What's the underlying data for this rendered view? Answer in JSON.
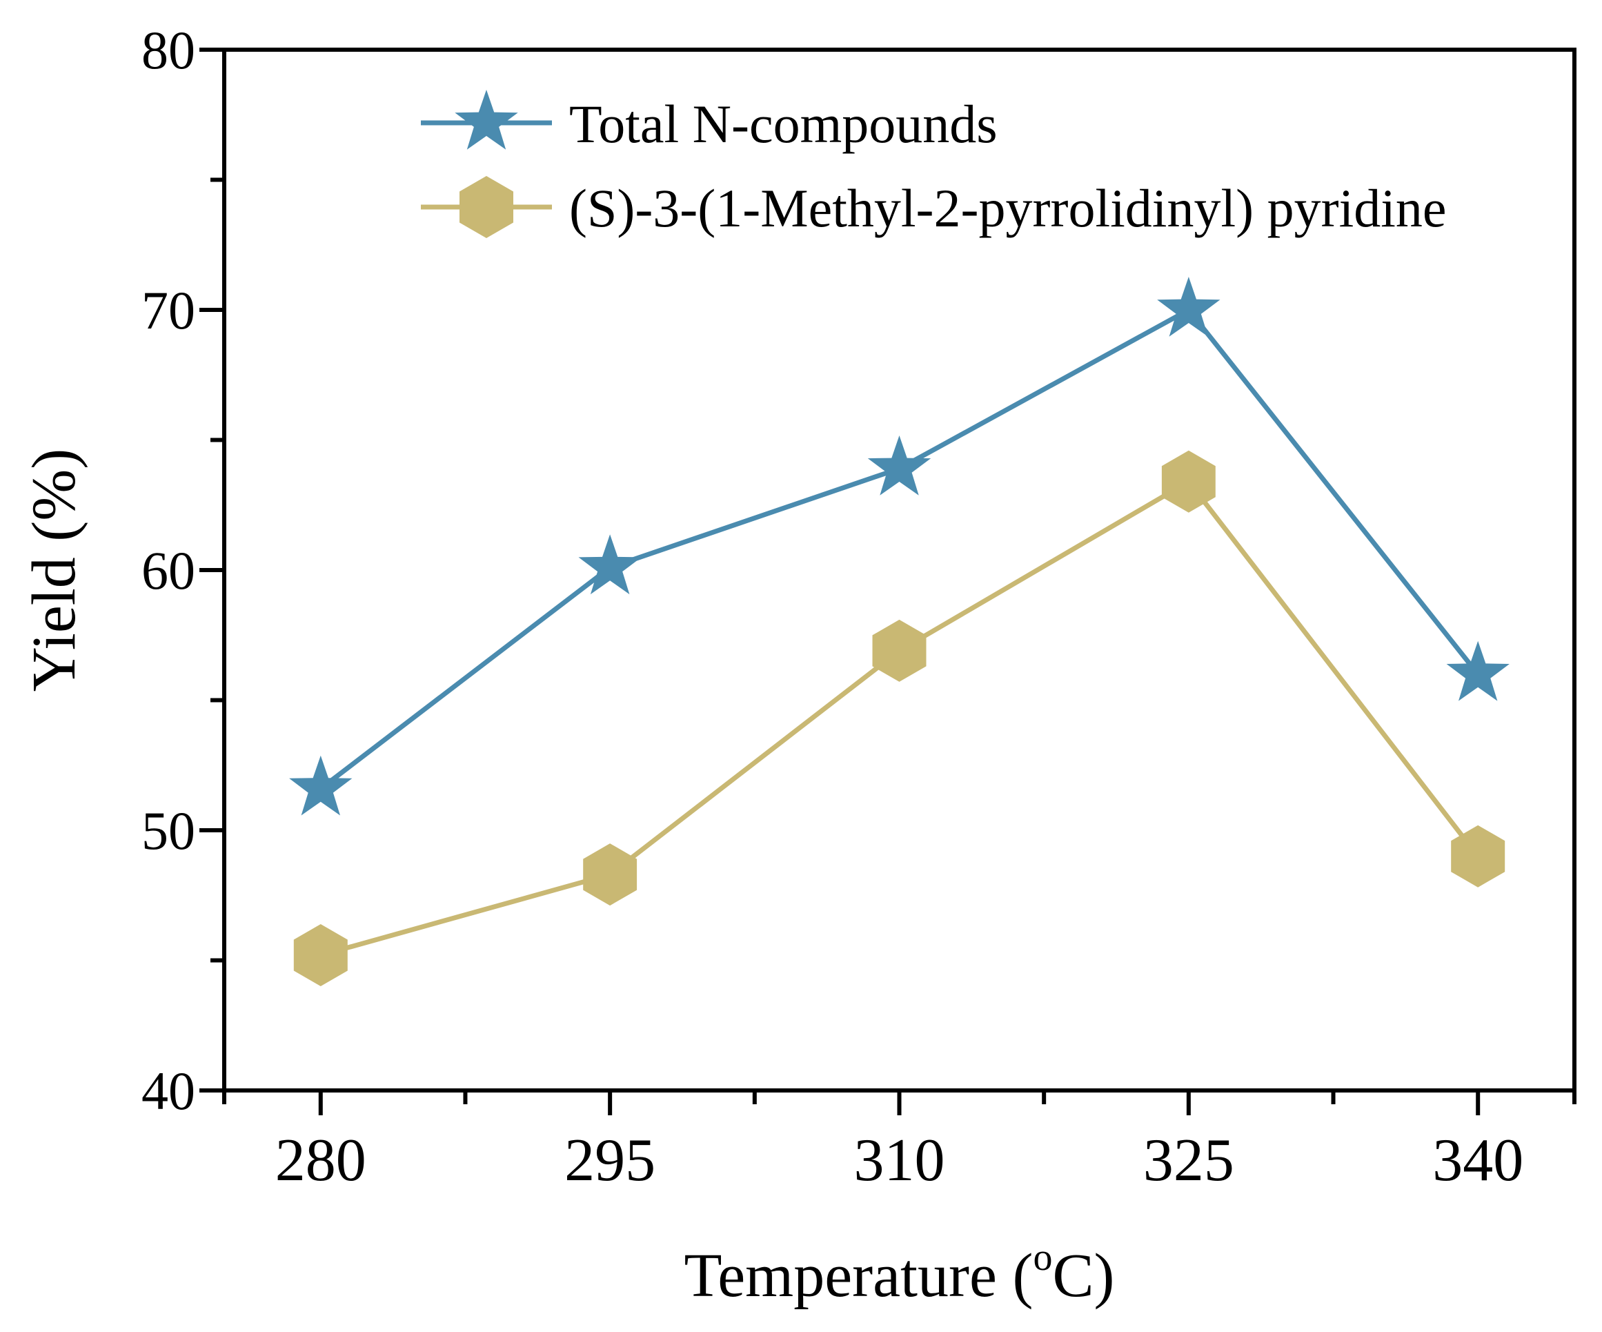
{
  "chart_data": {
    "type": "line",
    "title": "",
    "xlabel_main": "Temperature (",
    "xlabel_sup": "o",
    "xlabel_tail": "C)",
    "ylabel": "Yield (%)",
    "categories": [
      "280",
      "295",
      "310",
      "325",
      "340"
    ],
    "x": [
      280,
      295,
      310,
      325,
      340
    ],
    "xlim": [
      275,
      345
    ],
    "ylim": [
      40,
      80
    ],
    "yticks": [
      40,
      50,
      60,
      70,
      80
    ],
    "yminor": [
      45,
      55,
      65,
      75
    ],
    "grid": false,
    "legend_position": "top",
    "series": [
      {
        "name": "Total N-compounds",
        "marker": "star",
        "color": "#4A8BAF",
        "values": [
          51.6,
          60.1,
          63.9,
          70.0,
          56.0
        ]
      },
      {
        "name": "(S)-3-(1-Methyl-2-pyrrolidinyl) pyridine",
        "marker": "hexagon",
        "color": "#C9B873",
        "values": [
          45.2,
          48.3,
          56.9,
          63.4,
          49.0
        ]
      }
    ]
  }
}
